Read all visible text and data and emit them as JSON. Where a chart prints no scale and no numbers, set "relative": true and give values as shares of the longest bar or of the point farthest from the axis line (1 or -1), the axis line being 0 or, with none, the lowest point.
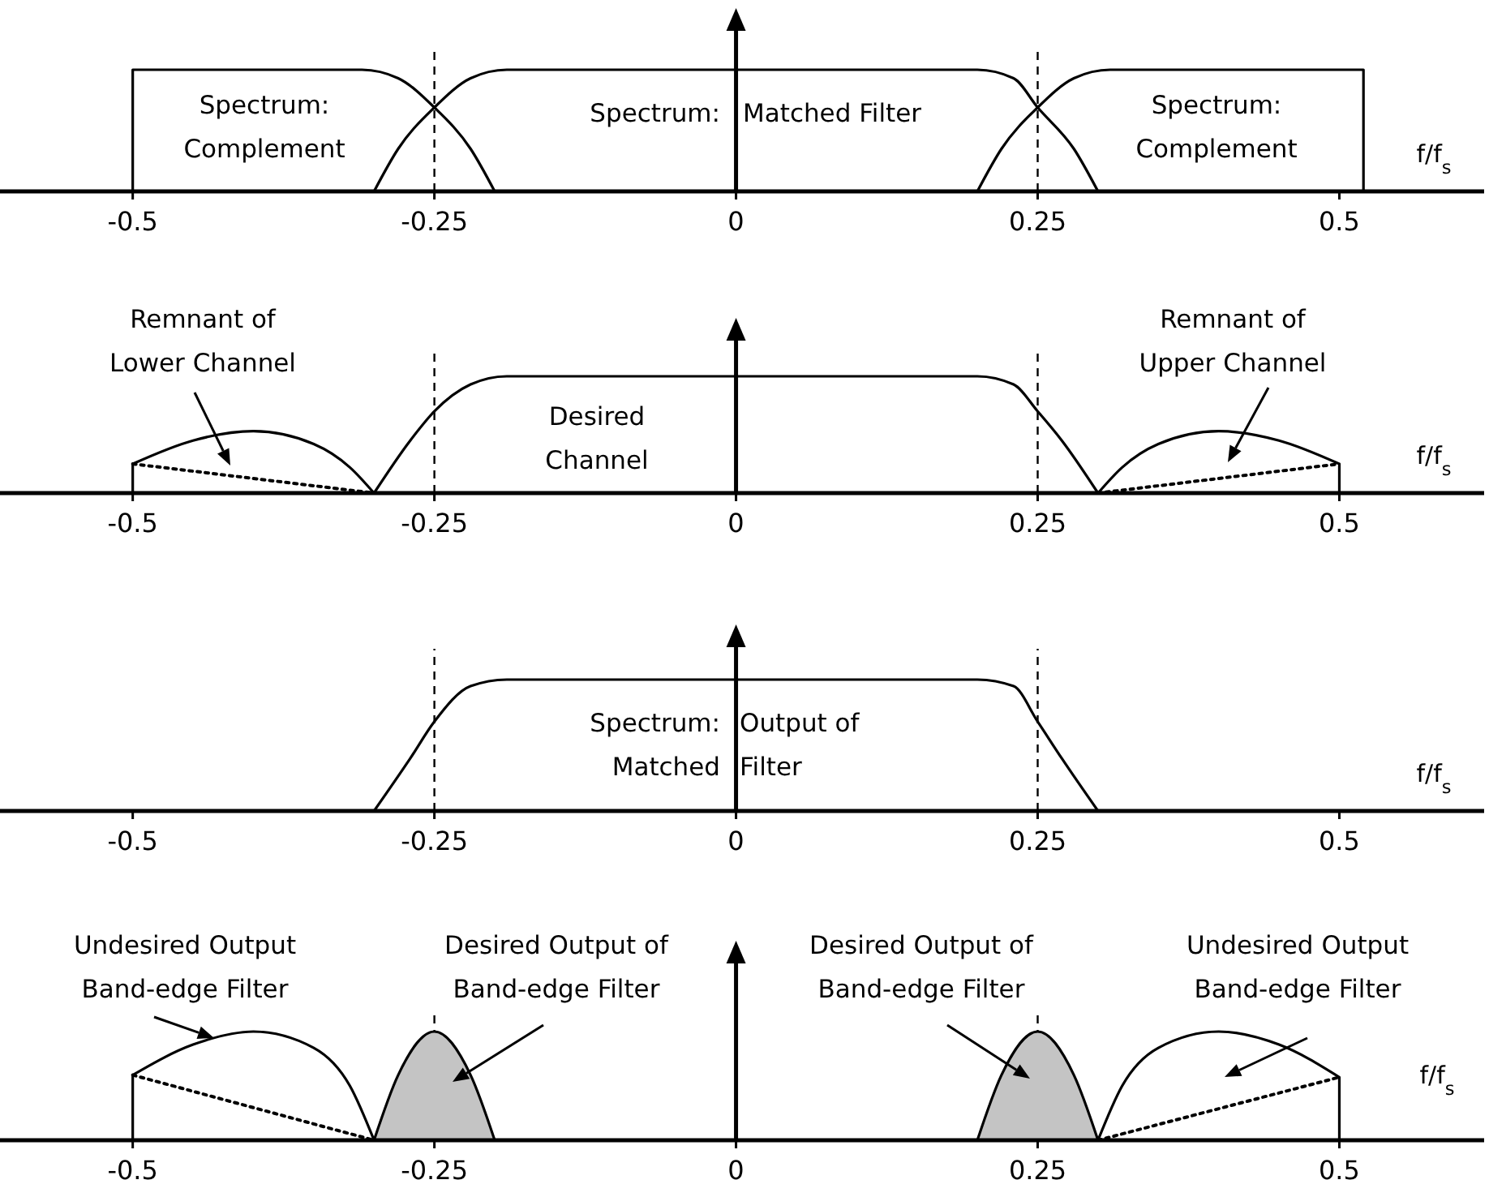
{
  "chart_data": [
    {
      "type": "line",
      "relative": true,
      "xlim": [
        -0.61,
        0.62
      ],
      "xticks": [
        -0.5,
        -0.25,
        0,
        0.25,
        0.5
      ],
      "xlabel": "f/f$_{s}$",
      "series": [
        {
          "color": "#000000",
          "x": [
            -0.5,
            -0.5,
            -0.31,
            -0.28,
            -0.25,
            -0.22,
            -0.2
          ],
          "values": [
            0,
            1,
            1,
            0.93,
            0.69,
            0.35,
            0
          ]
        },
        {
          "color": "#000000",
          "x": [
            -0.3,
            -0.28,
            -0.25,
            -0.22,
            -0.19,
            0.2,
            0.23,
            0.25,
            0.28,
            0.3
          ],
          "values": [
            0,
            0.35,
            0.69,
            0.93,
            1,
            1,
            0.93,
            0.69,
            0.35,
            0
          ]
        },
        {
          "color": "#000000",
          "x": [
            0.2,
            0.22,
            0.25,
            0.28,
            0.31,
            0.52,
            0.52
          ],
          "values": [
            0,
            0.35,
            0.69,
            0.93,
            1,
            1,
            0
          ]
        }
      ],
      "ref_lines": [
        {
          "axis": "x",
          "value": -0.25,
          "color": "#000000",
          "line_style": "dashed"
        },
        {
          "axis": "x",
          "value": 0.25,
          "color": "#000000",
          "line_style": "dashed"
        }
      ],
      "annotations": [
        "Spectrum:\nComplement",
        "Spectrum:",
        "Matched Filter",
        "Spectrum:\nComplement"
      ]
    },
    {
      "type": "line",
      "relative": true,
      "xlim": [
        -0.61,
        0.62
      ],
      "xticks": [
        -0.5,
        -0.25,
        0,
        0.25,
        0.5
      ],
      "xlabel": "f/f$_{s}$",
      "series": [
        {
          "color": "#000000",
          "x": [
            -0.5,
            -0.5,
            -0.45,
            -0.4,
            -0.35,
            -0.32,
            -0.3
          ],
          "values": [
            0,
            0.25,
            0.45,
            0.53,
            0.42,
            0.22,
            0
          ]
        },
        {
          "color": "#000000",
          "line_style": "dotted",
          "x": [
            -0.5,
            -0.3
          ],
          "values": [
            0.25,
            0
          ]
        },
        {
          "color": "#000000",
          "x": [
            -0.3,
            -0.27,
            -0.25,
            -0.22,
            -0.19,
            0.2,
            0.23,
            0.25,
            0.27,
            0.3
          ],
          "values": [
            0,
            0.45,
            0.7,
            0.93,
            1,
            1,
            0.93,
            0.7,
            0.45,
            0
          ]
        },
        {
          "color": "#000000",
          "x": [
            0.3,
            0.32,
            0.35,
            0.4,
            0.45,
            0.5,
            0.5
          ],
          "values": [
            0,
            0.22,
            0.42,
            0.53,
            0.45,
            0.25,
            0
          ]
        },
        {
          "color": "#000000",
          "line_style": "dotted",
          "x": [
            0.3,
            0.5
          ],
          "values": [
            0,
            0.25
          ]
        }
      ],
      "ref_lines": [
        {
          "axis": "x",
          "value": -0.25,
          "color": "#000000",
          "line_style": "dashed"
        },
        {
          "axis": "x",
          "value": 0.25,
          "color": "#000000",
          "line_style": "dashed"
        }
      ],
      "annotations": [
        "Remnant of\nLower Channel",
        "Desired\nChannel",
        "Remnant of\nUpper Channel"
      ]
    },
    {
      "type": "line",
      "relative": true,
      "xlim": [
        -0.61,
        0.62
      ],
      "xticks": [
        -0.5,
        -0.25,
        0,
        0.25,
        0.5
      ],
      "xlabel": "f/f$_{s}$",
      "series": [
        {
          "color": "#000000",
          "x": [
            -0.3,
            -0.27,
            -0.25,
            -0.22,
            -0.19,
            0.2,
            0.23,
            0.25,
            0.27,
            0.3
          ],
          "values": [
            0,
            0.4,
            0.68,
            0.95,
            1,
            1,
            0.95,
            0.68,
            0.4,
            0
          ]
        }
      ],
      "ref_lines": [
        {
          "axis": "x",
          "value": -0.25,
          "color": "#000000",
          "line_style": "dashed"
        },
        {
          "axis": "x",
          "value": 0.25,
          "color": "#000000",
          "line_style": "dashed"
        }
      ],
      "annotations": [
        "Spectrum:\nMatched",
        "Output of\nFilter"
      ]
    },
    {
      "type": "line",
      "relative": true,
      "xlim": [
        -0.61,
        0.62
      ],
      "xticks": [
        -0.5,
        -0.25,
        0,
        0.25,
        0.5
      ],
      "xlabel": "f/f$_{s}$",
      "series": [
        {
          "color": "#000000",
          "x": [
            -0.5,
            -0.5,
            -0.45,
            -0.4,
            -0.35,
            -0.32,
            -0.3
          ],
          "values": [
            0,
            0.6,
            0.88,
            1,
            0.85,
            0.5,
            0
          ]
        },
        {
          "color": "#000000",
          "line_style": "dotted",
          "x": [
            -0.5,
            -0.3
          ],
          "values": [
            0.6,
            0
          ]
        },
        {
          "type": "area",
          "color": "#c4c4c4",
          "x": [
            -0.3,
            -0.28,
            -0.25,
            -0.22,
            -0.2
          ],
          "values": [
            0,
            0.6,
            1,
            0.6,
            0
          ]
        },
        {
          "type": "area",
          "color": "#c4c4c4",
          "x": [
            0.2,
            0.22,
            0.25,
            0.28,
            0.3
          ],
          "values": [
            0,
            0.6,
            1,
            0.6,
            0
          ]
        },
        {
          "color": "#000000",
          "x": [
            0.3,
            0.32,
            0.35,
            0.4,
            0.45,
            0.5,
            0.5
          ],
          "values": [
            0,
            0.5,
            0.85,
            1,
            0.88,
            0.58,
            0
          ]
        },
        {
          "color": "#000000",
          "line_style": "dotted",
          "x": [
            0.3,
            0.5
          ],
          "values": [
            0,
            0.58
          ]
        }
      ],
      "ref_lines": [
        {
          "axis": "x",
          "value": -0.25,
          "color": "#000000",
          "line_style": "dashed"
        },
        {
          "axis": "x",
          "value": 0.25,
          "color": "#000000",
          "line_style": "dashed"
        }
      ],
      "annotations": [
        "Undesired Output\nBand-edge Filter",
        "Desired Output of\nBand-edge Filter",
        "Desired Output of\nBand-edge Filter",
        "Undesired Output\nBand-edge Filter"
      ]
    }
  ]
}
